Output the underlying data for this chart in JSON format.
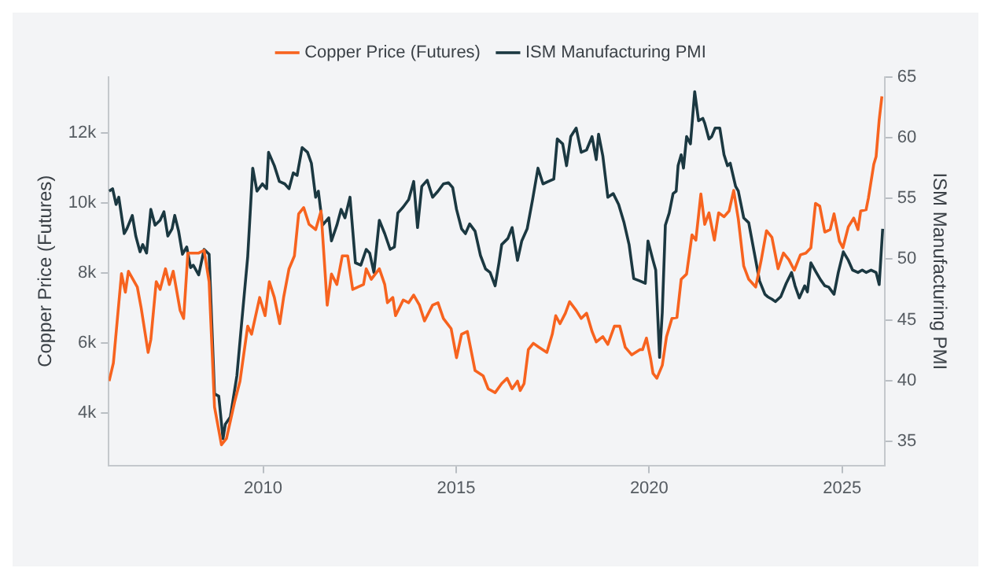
{
  "chart_data": {
    "type": "line",
    "ylabel": "Copper Price (Futures)",
    "y2label": "ISM Manufacturing PMI",
    "legend": "top",
    "xlim": [
      2006,
      2026.1
    ],
    "xticks": [
      2010,
      2015,
      2020,
      2025
    ],
    "ylim": [
      2500,
      13600
    ],
    "yticks": [
      {
        "value": 4000,
        "label": "4k"
      },
      {
        "value": 6000,
        "label": "6k"
      },
      {
        "value": 8000,
        "label": "8k"
      },
      {
        "value": 10000,
        "label": "10k"
      },
      {
        "value": 12000,
        "label": "12k"
      }
    ],
    "y2lim": [
      33,
      65
    ],
    "y2ticks": [
      35,
      40,
      45,
      50,
      55,
      60,
      65
    ],
    "series": [
      {
        "name": "Copper Price (Futures)",
        "color": "#f7631f",
        "x": [
          2006.01,
          2006.12,
          2006.33,
          2006.43,
          2006.51,
          2006.74,
          2006.84,
          2007.02,
          2007.09,
          2007.23,
          2007.33,
          2007.47,
          2007.57,
          2007.67,
          2007.85,
          2007.94,
          2008.05,
          2008.33,
          2008.47,
          2008.6,
          2008.74,
          2008.92,
          2009.05,
          2009.26,
          2009.4,
          2009.6,
          2009.7,
          2009.91,
          2010.05,
          2010.16,
          2010.29,
          2010.43,
          2010.53,
          2010.67,
          2010.81,
          2010.92,
          2011.05,
          2011.19,
          2011.36,
          2011.5,
          2011.66,
          2011.77,
          2011.91,
          2012.05,
          2012.19,
          2012.32,
          2012.6,
          2012.67,
          2012.8,
          2013.01,
          2013.15,
          2013.22,
          2013.36,
          2013.43,
          2013.63,
          2013.77,
          2013.9,
          2014.05,
          2014.18,
          2014.39,
          2014.53,
          2014.67,
          2014.87,
          2015.01,
          2015.14,
          2015.29,
          2015.49,
          2015.7,
          2015.83,
          2016.01,
          2016.18,
          2016.32,
          2016.45,
          2016.59,
          2016.66,
          2016.76,
          2016.87,
          2017.0,
          2017.14,
          2017.35,
          2017.49,
          2017.58,
          2017.69,
          2017.83,
          2017.94,
          2018.11,
          2018.24,
          2018.38,
          2018.52,
          2018.63,
          2018.8,
          2018.93,
          2019.1,
          2019.24,
          2019.38,
          2019.55,
          2019.76,
          2019.83,
          2019.93,
          2020.04,
          2020.1,
          2020.2,
          2020.34,
          2020.45,
          2020.59,
          2020.72,
          2020.83,
          2020.97,
          2021.11,
          2021.21,
          2021.34,
          2021.44,
          2021.55,
          2021.69,
          2021.8,
          2021.94,
          2022.07,
          2022.19,
          2022.31,
          2022.45,
          2022.58,
          2022.76,
          2022.9,
          2023.04,
          2023.18,
          2023.34,
          2023.48,
          2023.62,
          2023.76,
          2023.92,
          2024.06,
          2024.19,
          2024.31,
          2024.42,
          2024.55,
          2024.69,
          2024.79,
          2024.93,
          2025.02,
          2025.16,
          2025.3,
          2025.41,
          2025.48,
          2025.62,
          2025.68,
          2025.82,
          2025.88,
          2025.96,
          2026.03
        ],
        "values": [
          4910,
          5430,
          7980,
          7450,
          8050,
          7600,
          7000,
          5730,
          6100,
          7750,
          7530,
          8120,
          7670,
          8050,
          6930,
          6700,
          8570,
          8570,
          8650,
          7750,
          4170,
          3090,
          3270,
          4310,
          4910,
          6480,
          6250,
          7300,
          6780,
          7750,
          7300,
          6550,
          7300,
          8120,
          8490,
          9690,
          9870,
          9390,
          9240,
          9770,
          7080,
          7970,
          7670,
          8490,
          8490,
          7530,
          7670,
          8120,
          7820,
          8120,
          7670,
          7150,
          7300,
          6780,
          7230,
          7150,
          7370,
          7080,
          6630,
          7080,
          7150,
          6700,
          6410,
          5580,
          6250,
          6330,
          5210,
          5060,
          4690,
          4580,
          4840,
          4990,
          4690,
          4910,
          4640,
          4840,
          5810,
          5990,
          5880,
          5730,
          6250,
          6780,
          6550,
          6850,
          7180,
          6930,
          6700,
          6850,
          6330,
          6030,
          6180,
          5960,
          6480,
          6480,
          5880,
          5660,
          5810,
          5810,
          6140,
          5540,
          5130,
          4990,
          5360,
          6180,
          6700,
          6730,
          7820,
          7970,
          9090,
          8940,
          10260,
          9390,
          9720,
          8940,
          9720,
          9610,
          9770,
          10360,
          9540,
          8200,
          7820,
          7600,
          8350,
          9210,
          9020,
          8120,
          8570,
          8380,
          8080,
          8520,
          8570,
          8720,
          9990,
          9910,
          9170,
          9240,
          9690,
          8910,
          8720,
          9320,
          9570,
          9240,
          9770,
          9810,
          10140,
          11110,
          11330,
          12380,
          13050
        ]
      },
      {
        "name": "ISM Manufacturing PMI",
        "color": "#1b3841",
        "axis": "y2",
        "x": [
          2006.01,
          2006.1,
          2006.19,
          2006.26,
          2006.4,
          2006.47,
          2006.61,
          2006.7,
          2006.81,
          2006.88,
          2006.98,
          2007.09,
          2007.2,
          2007.33,
          2007.43,
          2007.53,
          2007.64,
          2007.71,
          2007.81,
          2007.91,
          2008.02,
          2008.12,
          2008.19,
          2008.33,
          2008.47,
          2008.6,
          2008.74,
          2008.85,
          2008.96,
          2009.02,
          2009.15,
          2009.32,
          2009.43,
          2009.6,
          2009.73,
          2009.84,
          2009.98,
          2010.09,
          2010.14,
          2010.29,
          2010.42,
          2010.56,
          2010.67,
          2010.78,
          2010.88,
          2011.01,
          2011.15,
          2011.25,
          2011.36,
          2011.43,
          2011.54,
          2011.7,
          2011.77,
          2011.91,
          2012.02,
          2012.12,
          2012.25,
          2012.39,
          2012.53,
          2012.67,
          2012.76,
          2012.87,
          2013.01,
          2013.15,
          2013.29,
          2013.4,
          2013.49,
          2013.63,
          2013.77,
          2013.9,
          2014.0,
          2014.11,
          2014.25,
          2014.39,
          2014.53,
          2014.67,
          2014.8,
          2014.91,
          2015.01,
          2015.14,
          2015.24,
          2015.35,
          2015.49,
          2015.63,
          2015.76,
          2015.88,
          2016.01,
          2016.11,
          2016.18,
          2016.34,
          2016.45,
          2016.59,
          2016.7,
          2016.84,
          2016.98,
          2017.12,
          2017.25,
          2017.39,
          2017.53,
          2017.62,
          2017.76,
          2017.86,
          2017.97,
          2018.11,
          2018.24,
          2018.38,
          2018.52,
          2018.63,
          2018.69,
          2018.8,
          2018.93,
          2019.07,
          2019.21,
          2019.35,
          2019.48,
          2019.6,
          2019.76,
          2019.9,
          2019.97,
          2020.1,
          2020.17,
          2020.27,
          2020.34,
          2020.42,
          2020.52,
          2020.62,
          2020.7,
          2020.75,
          2020.83,
          2020.89,
          2020.97,
          2021.07,
          2021.18,
          2021.28,
          2021.39,
          2021.44,
          2021.55,
          2021.62,
          2021.71,
          2021.83,
          2021.94,
          2022.03,
          2022.1,
          2022.24,
          2022.31,
          2022.45,
          2022.58,
          2022.72,
          2022.86,
          2023.0,
          2023.07,
          2023.18,
          2023.27,
          2023.41,
          2023.55,
          2023.69,
          2023.78,
          2023.89,
          2024.03,
          2024.1,
          2024.19,
          2024.33,
          2024.44,
          2024.55,
          2024.65,
          2024.79,
          2024.9,
          2025.03,
          2025.16,
          2025.27,
          2025.41,
          2025.52,
          2025.62,
          2025.75,
          2025.88,
          2025.96,
          2026.05
        ],
        "values": [
          55.6,
          55.8,
          54.5,
          55.1,
          52.1,
          52.5,
          53.6,
          51.9,
          50.6,
          51.2,
          50.5,
          54.1,
          52.8,
          53.2,
          53.9,
          51.9,
          52.5,
          53.6,
          52.3,
          50.4,
          51.0,
          49.3,
          49.5,
          48.7,
          50.8,
          50.4,
          38.9,
          38.7,
          35.2,
          36.4,
          37.0,
          40.4,
          44.3,
          50.2,
          57.5,
          55.6,
          56.2,
          55.8,
          58.8,
          57.7,
          56.4,
          56.2,
          55.8,
          57.1,
          56.9,
          59.2,
          58.8,
          57.9,
          55.1,
          55.6,
          52.8,
          53.4,
          51.5,
          52.8,
          54.1,
          53.4,
          55.1,
          49.7,
          49.5,
          50.8,
          50.5,
          48.9,
          53.2,
          52.1,
          50.8,
          51.0,
          53.8,
          54.3,
          54.9,
          56.4,
          52.6,
          56.0,
          56.5,
          55.1,
          55.6,
          56.2,
          56.3,
          55.9,
          54.1,
          52.5,
          52.1,
          52.9,
          52.3,
          50.3,
          49.2,
          48.9,
          47.8,
          49.7,
          51.2,
          51.7,
          52.6,
          49.9,
          51.5,
          52.5,
          54.9,
          57.5,
          56.2,
          56.4,
          56.6,
          59.9,
          59.5,
          57.7,
          60.1,
          60.8,
          58.8,
          59.0,
          60.1,
          58.2,
          60.3,
          58.5,
          55.1,
          55.4,
          54.5,
          53.0,
          51.2,
          48.4,
          48.2,
          48.0,
          51.5,
          49.9,
          49.1,
          41.9,
          45.6,
          52.8,
          53.8,
          55.4,
          55.6,
          57.7,
          58.6,
          57.5,
          60.1,
          59.5,
          63.8,
          61.4,
          61.6,
          61.2,
          59.9,
          60.1,
          60.8,
          60.8,
          58.6,
          57.7,
          57.9,
          56.0,
          55.6,
          53.4,
          53.0,
          50.6,
          48.2,
          47.1,
          46.9,
          46.7,
          46.5,
          46.9,
          48.0,
          48.9,
          47.8,
          46.8,
          47.8,
          47.3,
          49.7,
          48.9,
          48.3,
          47.8,
          47.7,
          47.1,
          48.9,
          50.6,
          49.9,
          49.1,
          48.9,
          49.1,
          48.9,
          49.1,
          48.9,
          47.9,
          52.5
        ]
      }
    ]
  }
}
